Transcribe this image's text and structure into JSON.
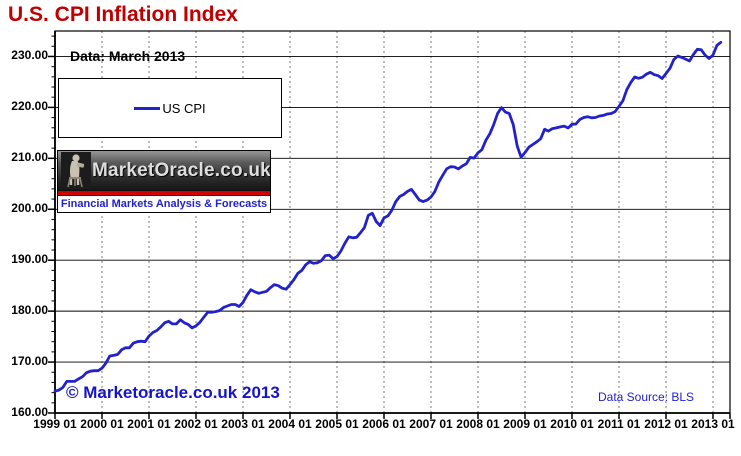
{
  "title": "U.S. CPI Inflation Index",
  "annotations": {
    "data_note": "Data: March 2013",
    "watermark": "© Marketoracle.co.uk 2013",
    "data_source": "Data Source: BLS"
  },
  "legend": {
    "label": "US CPI"
  },
  "logo": {
    "name": "MarketOracle.co.uk",
    "tagline": "Financial Markets Analysis & Forecasts",
    "figure_icon": "seated-oracle-figure-icon"
  },
  "colors": {
    "title_red": "#C00000",
    "line_blue": "#2222CC",
    "watermark_blue": "#1414CC",
    "datasource_blue": "#2222CC",
    "logo_stripe_red": "#D40000",
    "logo_tagline_blue": "#2222CC",
    "vgrid_gray": "#7a7a7a",
    "hgrid_black": "#000000"
  },
  "chart_data": {
    "type": "line",
    "title": "U.S. CPI Inflation Index",
    "xlabel": "",
    "ylabel": "",
    "ylim": [
      160,
      235
    ],
    "yticks": [
      160,
      170,
      180,
      190,
      200,
      210,
      220,
      230
    ],
    "ytick_labels": [
      "160.00",
      "170.00",
      "180.00",
      "190.00",
      "200.00",
      "210.00",
      "220.00",
      "230.00"
    ],
    "xtick_labels": [
      "1999 01",
      "2000 01",
      "2001 01",
      "2002 01",
      "2003 01",
      "2004 01",
      "2005 01",
      "2006 01",
      "2007 01",
      "2008 01",
      "2009 01",
      "2010 01",
      "2011 01",
      "2012 01",
      "2013 01"
    ],
    "grid": "horizontal-solid-black, vertical-dashed-gray",
    "legend_position": "top-left-box",
    "series": [
      {
        "name": "US CPI",
        "start": "1999-01",
        "end": "2013-03",
        "frequency": "monthly",
        "values": [
          164.3,
          164.5,
          165.0,
          166.2,
          166.2,
          166.2,
          166.7,
          167.1,
          167.9,
          168.2,
          168.3,
          168.3,
          168.8,
          169.8,
          171.2,
          171.3,
          171.5,
          172.4,
          172.8,
          172.8,
          173.7,
          174.0,
          174.1,
          174.0,
          175.1,
          175.8,
          176.2,
          176.9,
          177.7,
          178.0,
          177.5,
          177.5,
          178.3,
          177.7,
          177.4,
          176.7,
          177.1,
          177.8,
          178.8,
          179.8,
          179.8,
          179.9,
          180.1,
          180.7,
          181.0,
          181.3,
          181.3,
          180.9,
          181.7,
          183.1,
          184.2,
          183.8,
          183.5,
          183.7,
          183.9,
          184.6,
          185.2,
          185.0,
          184.5,
          184.3,
          185.2,
          186.2,
          187.4,
          188.0,
          189.1,
          189.7,
          189.4,
          189.5,
          189.9,
          190.9,
          191.0,
          190.3,
          190.7,
          191.8,
          193.3,
          194.6,
          194.4,
          194.5,
          195.4,
          196.4,
          198.8,
          199.2,
          197.6,
          196.8,
          198.3,
          198.7,
          199.8,
          201.5,
          202.5,
          202.9,
          203.5,
          203.9,
          202.9,
          201.8,
          201.5,
          201.8,
          202.416,
          203.499,
          205.352,
          206.686,
          207.949,
          208.352,
          208.299,
          207.917,
          208.49,
          208.936,
          210.177,
          210.036,
          211.08,
          211.693,
          213.528,
          214.823,
          216.632,
          218.815,
          219.964,
          219.086,
          218.783,
          216.573,
          212.425,
          210.228,
          211.143,
          212.193,
          212.709,
          213.24,
          213.856,
          215.693,
          215.351,
          215.834,
          215.969,
          216.177,
          216.33,
          215.949,
          216.687,
          216.741,
          217.631,
          218.009,
          218.178,
          217.965,
          218.011,
          218.312,
          218.439,
          218.711,
          218.803,
          219.179,
          220.223,
          221.309,
          223.467,
          224.906,
          225.964,
          225.722,
          225.922,
          226.545,
          226.889,
          226.421,
          226.23,
          225.672,
          226.665,
          227.663,
          229.392,
          230.085,
          229.815,
          229.478,
          229.104,
          230.379,
          231.407,
          231.317,
          230.221,
          229.601,
          230.28,
          232.166,
          232.773
        ]
      }
    ]
  }
}
